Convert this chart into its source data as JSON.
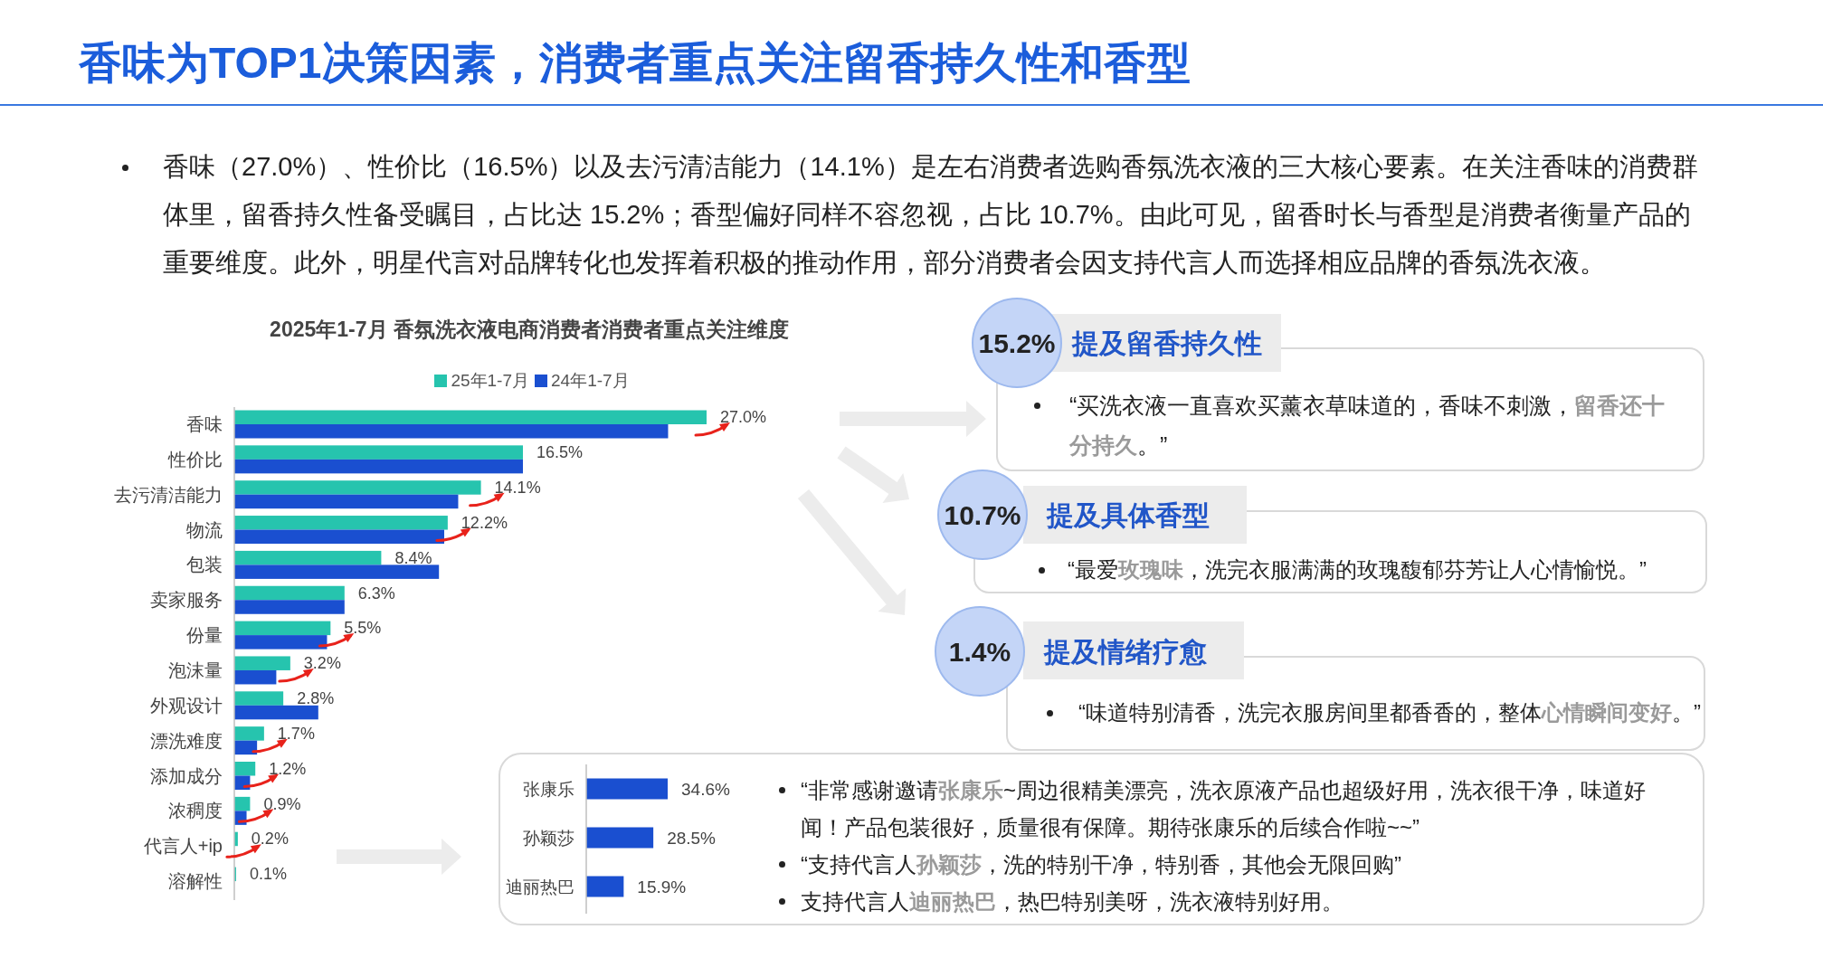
{
  "chart_data": [
    {
      "type": "other",
      "title": "香味为TOP1决策因素，消费者重点关注留香持久性和香型",
      "annotations": [
        "香味（27.0%）、性价比（16.5%）以及去污清洁能力（14.1%）是左右消费者选购香氛洗衣液的三大核心要素。在关注香味的消费群体里，留香持久性备受瞩目，占比达 15.2%；香型偏好同样不容忽视，占比 10.7%。由此可见，留香时长与香型是消费者衡量产品的重要维度。此外，明星代言对品牌转化也发挥着积极的推动作用，部分消费者会因支持代言人而选择相应品牌的香氛洗衣液。"
      ]
    },
    {
      "type": "bar",
      "orientation": "horizontal",
      "title": "2025年1-7月 香氛洗衣液电商消费者消费者重点关注维度",
      "legend": "top",
      "categories": [
        "香味",
        "性价比",
        "去污清洁能力",
        "物流",
        "包装",
        "卖家服务",
        "份量",
        "泡沫量",
        "外观设计",
        "漂洗难度",
        "添加成分",
        "浓稠度",
        "代言人+ip",
        "溶解性"
      ],
      "series": [
        {
          "name": "25年1-7月",
          "color": "#26c4ae",
          "values": [
            27.0,
            16.5,
            14.1,
            12.2,
            8.4,
            6.3,
            5.5,
            3.2,
            2.8,
            1.7,
            1.2,
            0.9,
            0.2,
            0.1
          ],
          "value_labels": [
            "27.0%",
            "16.5%",
            "14.1%",
            "12.2%",
            "8.4%",
            "6.3%",
            "5.5%",
            "3.2%",
            "2.8%",
            "1.7%",
            "1.2%",
            "0.9%",
            "0.2%",
            "0.1%"
          ]
        },
        {
          "name": "24年1-7月",
          "color": "#1a4fd0",
          "values": [
            24.8,
            16.5,
            12.8,
            12.0,
            11.7,
            6.3,
            5.3,
            2.4,
            4.8,
            1.3,
            0.9,
            0.7,
            0,
            null
          ]
        }
      ]
    },
    {
      "type": "other",
      "annotations": [
        "15.2%",
        "提及留香持久性",
        "“买洗衣液一直喜欢买薰衣草味道的，香味不刺激，**留香还十分持久**。”",
        "10.7%",
        "提及具体香型",
        "“最爱**玫瑰味**，洗完衣服满满的玫瑰馥郁芬芳让人心情愉悦。”",
        "1.4%",
        "提及情绪疗愈",
        "“味道特别清香，洗完衣服房间里都香香的，整体**心情瞬间变好**。”"
      ]
    },
    {
      "type": "bar",
      "orientation": "horizontal",
      "categories": [
        "张康乐",
        "孙颖莎",
        "迪丽热巴"
      ],
      "values": [
        34.6,
        28.5,
        15.9
      ],
      "color": "#1a4fd0",
      "value_labels": [
        "34.6%",
        "28.5%",
        "15.9%"
      ],
      "annotations": [
        "“非常感谢邀请**张康乐**~周边很精美漂亮，洗衣原液产品也超级好用，洗衣很干净，味道好闻！产品包装很好，质量很有保障。期待张康乐的后续合作啦~~”",
        "“支持代言人**孙颖莎**，洗的特别干净，特别香，其他会无限回购”",
        "支持代言人**迪丽热巴**，热巴特别美呀，洗衣液特别好用。"
      ]
    }
  ]
}
